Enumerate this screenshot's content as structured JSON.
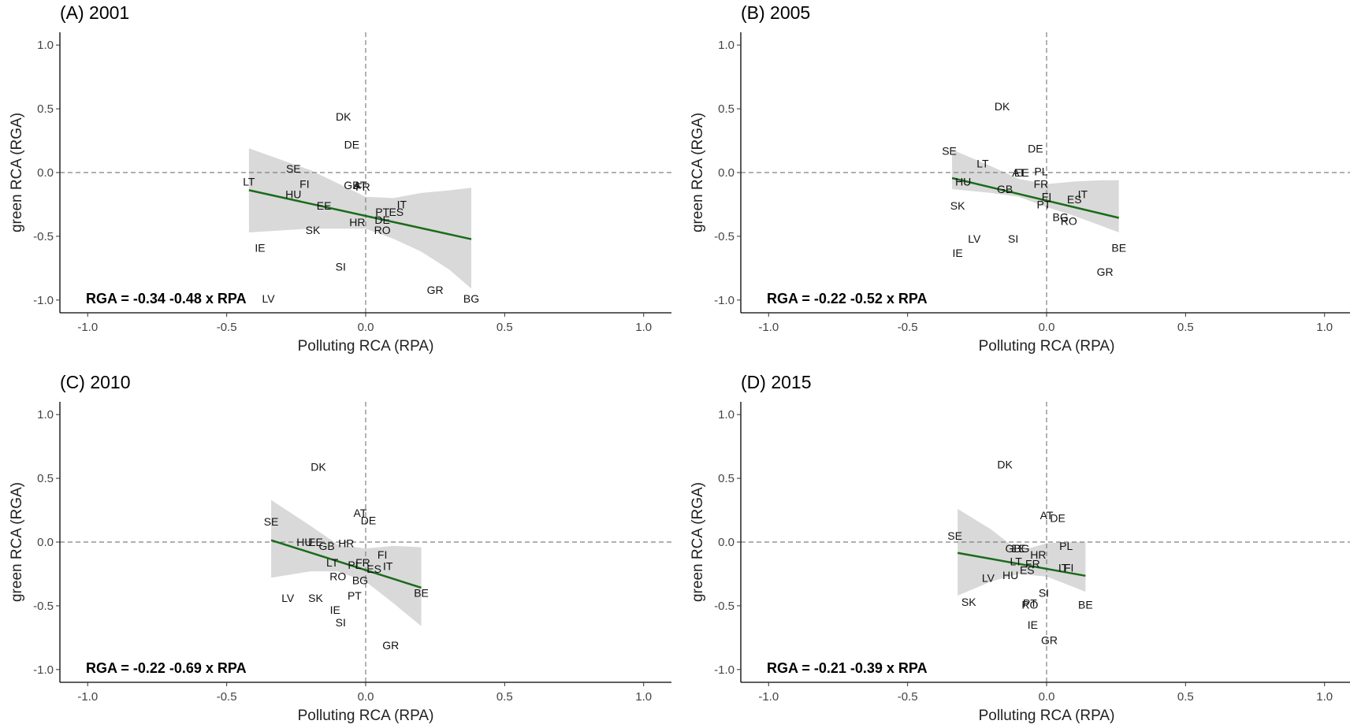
{
  "figure": {
    "band_color": "#d9d9d9",
    "line_color": "#1a6b1a",
    "ref_line_color": "#808080"
  },
  "chart_data": [
    {
      "type": "scatter",
      "title": "(A) 2001",
      "xlabel": "Polluting RCA (RPA)",
      "ylabel": "green RCA (RGA)",
      "xlim": [
        -1.1,
        1.1
      ],
      "ylim": [
        -1.1,
        1.1
      ],
      "xticks": [
        -1.0,
        -0.5,
        0.0,
        0.5,
        1.0
      ],
      "yticks": [
        -1.0,
        -0.5,
        0.0,
        0.5,
        1.0
      ],
      "xtick_labels": [
        "-1.0",
        "-0.5",
        "0.0",
        "0.5",
        "1.0"
      ],
      "ytick_labels": [
        "-1.0",
        "-0.5",
        "0.0",
        "0.5",
        "1.0"
      ],
      "equation": "RGA = -0.34 -0.48 x RPA",
      "points": [
        {
          "label": "DK",
          "x": -0.08,
          "y": 0.44
        },
        {
          "label": "DE",
          "x": -0.05,
          "y": 0.22
        },
        {
          "label": "SE",
          "x": -0.26,
          "y": 0.03
        },
        {
          "label": "LT",
          "x": -0.42,
          "y": -0.07
        },
        {
          "label": "FI",
          "x": -0.22,
          "y": -0.09
        },
        {
          "label": "GB",
          "x": -0.05,
          "y": -0.1
        },
        {
          "label": "AT",
          "x": -0.02,
          "y": -0.1
        },
        {
          "label": "FR",
          "x": -0.01,
          "y": -0.11
        },
        {
          "label": "HU",
          "x": -0.26,
          "y": -0.17
        },
        {
          "label": "EE",
          "x": -0.15,
          "y": -0.26
        },
        {
          "label": "IT",
          "x": 0.13,
          "y": -0.25
        },
        {
          "label": "PT",
          "x": 0.06,
          "y": -0.31
        },
        {
          "label": "ES",
          "x": 0.11,
          "y": -0.31
        },
        {
          "label": "HR",
          "x": -0.03,
          "y": -0.39
        },
        {
          "label": "DE",
          "x": 0.06,
          "y": -0.37
        },
        {
          "label": "RO",
          "x": 0.06,
          "y": -0.45
        },
        {
          "label": "SK",
          "x": -0.19,
          "y": -0.45
        },
        {
          "label": "IE",
          "x": -0.38,
          "y": -0.59
        },
        {
          "label": "SI",
          "x": -0.09,
          "y": -0.74
        },
        {
          "label": "LV",
          "x": -0.35,
          "y": -0.99
        },
        {
          "label": "GR",
          "x": 0.25,
          "y": -0.92
        },
        {
          "label": "BG",
          "x": 0.38,
          "y": -0.99
        }
      ],
      "fit": {
        "x_start": -0.42,
        "x_end": 0.38,
        "intercept": -0.34,
        "slope": -0.48
      },
      "band": {
        "x": [
          -0.42,
          -0.2,
          0.0,
          0.1,
          0.2,
          0.3,
          0.38
        ],
        "lower": [
          -0.47,
          -0.44,
          -0.44,
          -0.52,
          -0.62,
          -0.76,
          -0.91
        ],
        "upper": [
          0.19,
          0.02,
          -0.19,
          -0.2,
          -0.16,
          -0.14,
          -0.12
        ]
      }
    },
    {
      "type": "scatter",
      "title": "(B) 2005",
      "xlabel": "Polluting RCA (RPA)",
      "ylabel": "green RCA (RGA)",
      "xlim": [
        -1.1,
        1.1
      ],
      "ylim": [
        -1.1,
        1.1
      ],
      "xticks": [
        -1.0,
        -0.5,
        0.0,
        0.5,
        1.0
      ],
      "yticks": [
        -1.0,
        -0.5,
        0.0,
        0.5,
        1.0
      ],
      "xtick_labels": [
        "-1.0",
        "-0.5",
        "0.0",
        "0.5",
        "1.0"
      ],
      "ytick_labels": [
        "-1.0",
        "-0.5",
        "0.0",
        "0.5",
        "1.0"
      ],
      "equation": "RGA = -0.22 -0.52 x RPA",
      "points": [
        {
          "label": "DK",
          "x": -0.16,
          "y": 0.52
        },
        {
          "label": "DE",
          "x": -0.04,
          "y": 0.19
        },
        {
          "label": "SE",
          "x": -0.35,
          "y": 0.17
        },
        {
          "label": "LT",
          "x": -0.23,
          "y": 0.07
        },
        {
          "label": "AT",
          "x": -0.1,
          "y": 0.0
        },
        {
          "label": "EE",
          "x": -0.09,
          "y": -0.0
        },
        {
          "label": "PL",
          "x": -0.02,
          "y": 0.01
        },
        {
          "label": "HU",
          "x": -0.3,
          "y": -0.07
        },
        {
          "label": "FR",
          "x": -0.02,
          "y": -0.09
        },
        {
          "label": "GB",
          "x": -0.15,
          "y": -0.13
        },
        {
          "label": "IT",
          "x": 0.13,
          "y": -0.17
        },
        {
          "label": "FI",
          "x": 0.0,
          "y": -0.19
        },
        {
          "label": "ES",
          "x": 0.1,
          "y": -0.21
        },
        {
          "label": "PT",
          "x": -0.01,
          "y": -0.25
        },
        {
          "label": "SK",
          "x": -0.32,
          "y": -0.26
        },
        {
          "label": "BG",
          "x": 0.05,
          "y": -0.35
        },
        {
          "label": "RO",
          "x": 0.08,
          "y": -0.38
        },
        {
          "label": "LV",
          "x": -0.26,
          "y": -0.52
        },
        {
          "label": "SI",
          "x": -0.12,
          "y": -0.52
        },
        {
          "label": "IE",
          "x": -0.32,
          "y": -0.63
        },
        {
          "label": "BE",
          "x": 0.26,
          "y": -0.59
        },
        {
          "label": "GR",
          "x": 0.21,
          "y": -0.78
        }
      ],
      "fit": {
        "x_start": -0.34,
        "x_end": 0.26,
        "intercept": -0.22,
        "slope": -0.52
      },
      "band": {
        "x": [
          -0.34,
          -0.2,
          -0.1,
          0.0,
          0.1,
          0.2,
          0.26
        ],
        "lower": [
          -0.13,
          -0.16,
          -0.19,
          -0.27,
          -0.34,
          -0.42,
          -0.47
        ],
        "upper": [
          0.18,
          0.05,
          -0.05,
          -0.09,
          -0.07,
          -0.06,
          -0.06
        ]
      }
    },
    {
      "type": "scatter",
      "title": "(C) 2010",
      "xlabel": "Polluting RCA (RPA)",
      "ylabel": "green RCA (RGA)",
      "xlim": [
        -1.1,
        1.1
      ],
      "ylim": [
        -1.1,
        1.1
      ],
      "xticks": [
        -1.0,
        -0.5,
        0.0,
        0.5,
        1.0
      ],
      "yticks": [
        -1.0,
        -0.5,
        0.0,
        0.5,
        1.0
      ],
      "xtick_labels": [
        "-1.0",
        "-0.5",
        "0.0",
        "0.5",
        "1.0"
      ],
      "ytick_labels": [
        "-1.0",
        "-0.5",
        "0.0",
        "0.5",
        "1.0"
      ],
      "equation": "RGA = -0.22 -0.69 x RPA",
      "points": [
        {
          "label": "DK",
          "x": -0.17,
          "y": 0.59
        },
        {
          "label": "AT",
          "x": -0.02,
          "y": 0.23
        },
        {
          "label": "DE",
          "x": 0.01,
          "y": 0.17
        },
        {
          "label": "SE",
          "x": -0.34,
          "y": 0.16
        },
        {
          "label": "HU",
          "x": -0.22,
          "y": 0.0
        },
        {
          "label": "EE",
          "x": -0.18,
          "y": 0.0
        },
        {
          "label": "GB",
          "x": -0.14,
          "y": -0.03
        },
        {
          "label": "HR",
          "x": -0.07,
          "y": -0.01
        },
        {
          "label": "FI",
          "x": 0.06,
          "y": -0.1
        },
        {
          "label": "LT",
          "x": -0.12,
          "y": -0.16
        },
        {
          "label": "FR",
          "x": -0.01,
          "y": -0.16
        },
        {
          "label": "PL",
          "x": -0.04,
          "y": -0.18
        },
        {
          "label": "IT",
          "x": 0.08,
          "y": -0.19
        },
        {
          "label": "ES",
          "x": 0.03,
          "y": -0.21
        },
        {
          "label": "RO",
          "x": -0.1,
          "y": -0.27
        },
        {
          "label": "BG",
          "x": -0.02,
          "y": -0.3
        },
        {
          "label": "BE",
          "x": 0.2,
          "y": -0.4
        },
        {
          "label": "PT",
          "x": -0.04,
          "y": -0.42
        },
        {
          "label": "LV",
          "x": -0.28,
          "y": -0.44
        },
        {
          "label": "SK",
          "x": -0.18,
          "y": -0.44
        },
        {
          "label": "IE",
          "x": -0.11,
          "y": -0.53
        },
        {
          "label": "SI",
          "x": -0.09,
          "y": -0.63
        },
        {
          "label": "GR",
          "x": 0.09,
          "y": -0.81
        }
      ],
      "fit": {
        "x_start": -0.34,
        "x_end": 0.2,
        "intercept": -0.22,
        "slope": -0.69
      },
      "band": {
        "x": [
          -0.34,
          -0.2,
          -0.1,
          0.0,
          0.1,
          0.2
        ],
        "lower": [
          -0.28,
          -0.23,
          -0.23,
          -0.31,
          -0.48,
          -0.66
        ],
        "upper": [
          0.33,
          0.13,
          -0.02,
          -0.05,
          -0.03,
          -0.04
        ]
      }
    },
    {
      "type": "scatter",
      "title": "(D) 2015",
      "xlabel": "Polluting RCA (RPA)",
      "ylabel": "green RCA (RGA)",
      "xlim": [
        -1.1,
        1.1
      ],
      "ylim": [
        -1.1,
        1.1
      ],
      "xticks": [
        -1.0,
        -0.5,
        0.0,
        0.5,
        1.0
      ],
      "yticks": [
        -1.0,
        -0.5,
        0.0,
        0.5,
        1.0
      ],
      "xtick_labels": [
        "-1.0",
        "-0.5",
        "0.0",
        "0.5",
        "1.0"
      ],
      "ytick_labels": [
        "-1.0",
        "-0.5",
        "0.0",
        "0.5",
        "1.0"
      ],
      "equation": "RGA = -0.21 -0.39 x RPA",
      "points": [
        {
          "label": "DK",
          "x": -0.15,
          "y": 0.61
        },
        {
          "label": "AT",
          "x": 0.0,
          "y": 0.21
        },
        {
          "label": "DE",
          "x": 0.04,
          "y": 0.19
        },
        {
          "label": "SE",
          "x": -0.33,
          "y": 0.05
        },
        {
          "label": "PL",
          "x": 0.07,
          "y": -0.03
        },
        {
          "label": "GB",
          "x": -0.12,
          "y": -0.05
        },
        {
          "label": "EE",
          "x": -0.1,
          "y": -0.05
        },
        {
          "label": "BG",
          "x": -0.09,
          "y": -0.05
        },
        {
          "label": "HR",
          "x": -0.03,
          "y": -0.1
        },
        {
          "label": "LT",
          "x": -0.11,
          "y": -0.15
        },
        {
          "label": "FR",
          "x": -0.05,
          "y": -0.17
        },
        {
          "label": "IT",
          "x": 0.06,
          "y": -0.2
        },
        {
          "label": "FI",
          "x": 0.08,
          "y": -0.2
        },
        {
          "label": "ES",
          "x": -0.07,
          "y": -0.22
        },
        {
          "label": "HU",
          "x": -0.13,
          "y": -0.26
        },
        {
          "label": "LV",
          "x": -0.21,
          "y": -0.28
        },
        {
          "label": "SI",
          "x": -0.01,
          "y": -0.4
        },
        {
          "label": "PT",
          "x": -0.06,
          "y": -0.48
        },
        {
          "label": "RO",
          "x": -0.06,
          "y": -0.49
        },
        {
          "label": "SK",
          "x": -0.28,
          "y": -0.47
        },
        {
          "label": "BE",
          "x": 0.14,
          "y": -0.49
        },
        {
          "label": "IE",
          "x": -0.05,
          "y": -0.65
        },
        {
          "label": "GR",
          "x": 0.01,
          "y": -0.77
        }
      ],
      "fit": {
        "x_start": -0.32,
        "x_end": 0.14,
        "intercept": -0.21,
        "slope": -0.39
      },
      "band": {
        "x": [
          -0.32,
          -0.2,
          -0.1,
          0.0,
          0.07,
          0.14
        ],
        "lower": [
          -0.42,
          -0.31,
          -0.25,
          -0.27,
          -0.33,
          -0.39
        ],
        "upper": [
          0.26,
          0.1,
          -0.07,
          -0.01,
          0.0,
          0.0
        ]
      }
    }
  ]
}
